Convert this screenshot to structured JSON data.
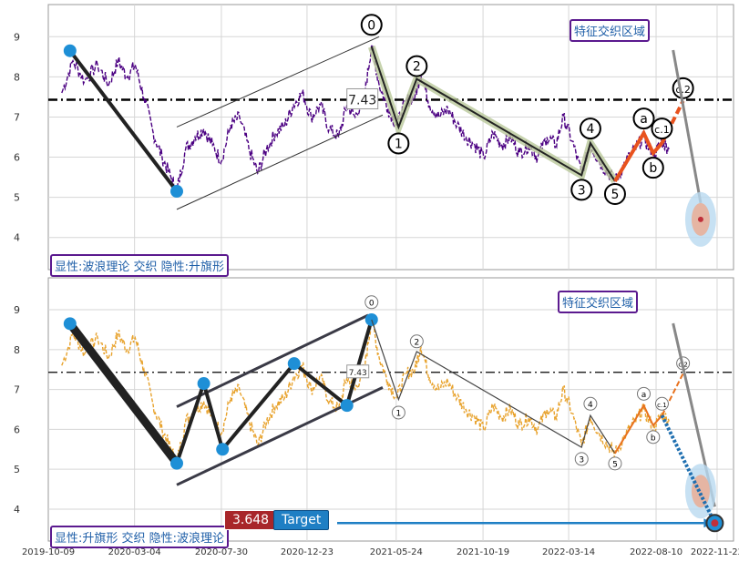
{
  "chart_data": [
    {
      "type": "line",
      "panel": "top",
      "ylim": [
        3.2,
        9.8
      ],
      "yticks": [
        4,
        5,
        6,
        7,
        8,
        9
      ],
      "grid": true,
      "reference_line": 7.43,
      "price_color": "#4b0082",
      "series": [
        {
          "values": [
            [
              "2019-11-01",
              7.6
            ],
            [
              "2019-11-20",
              8.4
            ],
            [
              "2019-12-10",
              7.9
            ],
            [
              "2020-01-01",
              8.3
            ],
            [
              "2020-01-20",
              7.8
            ],
            [
              "2020-02-05",
              8.4
            ],
            [
              "2020-02-20",
              8.0
            ],
            [
              "2020-03-05",
              8.3
            ],
            [
              "2020-03-20",
              7.5
            ],
            [
              "2020-04-05",
              6.6
            ],
            [
              "2020-04-20",
              6.0
            ],
            [
              "2020-05-05",
              5.5
            ],
            [
              "2020-05-15",
              5.15
            ],
            [
              "2020-05-30",
              6.2
            ],
            [
              "2020-06-15",
              6.5
            ],
            [
              "2020-06-30",
              6.7
            ],
            [
              "2020-07-15",
              6.3
            ],
            [
              "2020-07-30",
              5.9
            ],
            [
              "2020-08-15",
              6.8
            ],
            [
              "2020-08-30",
              7.0
            ],
            [
              "2020-09-15",
              6.2
            ],
            [
              "2020-09-30",
              5.6
            ],
            [
              "2020-10-15",
              6.2
            ],
            [
              "2020-10-30",
              6.6
            ],
            [
              "2020-11-15",
              6.8
            ],
            [
              "2020-11-30",
              7.3
            ],
            [
              "2020-12-15",
              7.6
            ],
            [
              "2020-12-30",
              7.0
            ],
            [
              "2021-01-15",
              7.3
            ],
            [
              "2021-01-30",
              6.7
            ],
            [
              "2021-02-15",
              6.5
            ],
            [
              "2021-03-01",
              7.3
            ],
            [
              "2021-03-15",
              7.0
            ],
            [
              "2021-04-01",
              7.6
            ],
            [
              "2021-04-12",
              8.8
            ],
            [
              "2021-04-25",
              7.8
            ],
            [
              "2021-05-10",
              7.2
            ],
            [
              "2021-05-25",
              6.8
            ],
            [
              "2021-06-10",
              7.4
            ],
            [
              "2021-06-25",
              7.5
            ],
            [
              "2021-07-05",
              8.1
            ],
            [
              "2021-07-20",
              7.3
            ],
            [
              "2021-08-05",
              7.0
            ],
            [
              "2021-08-20",
              7.2
            ],
            [
              "2021-09-05",
              6.8
            ],
            [
              "2021-09-20",
              6.5
            ],
            [
              "2021-10-05",
              6.3
            ],
            [
              "2021-10-20",
              6.0
            ],
            [
              "2021-11-05",
              6.6
            ],
            [
              "2021-11-20",
              6.3
            ],
            [
              "2021-12-05",
              6.5
            ],
            [
              "2021-12-20",
              6.1
            ],
            [
              "2022-01-05",
              6.3
            ],
            [
              "2022-01-20",
              6.0
            ],
            [
              "2022-02-05",
              6.5
            ],
            [
              "2022-02-20",
              6.3
            ],
            [
              "2022-03-05",
              7.0
            ],
            [
              "2022-03-20",
              6.4
            ],
            [
              "2022-04-05",
              5.6
            ],
            [
              "2022-04-20",
              6.3
            ],
            [
              "2022-05-05",
              5.9
            ],
            [
              "2022-05-20",
              5.6
            ],
            [
              "2022-06-01",
              5.4
            ],
            [
              "2022-06-20",
              5.9
            ],
            [
              "2022-07-05",
              6.2
            ],
            [
              "2022-07-20",
              6.5
            ],
            [
              "2022-08-05",
              6.0
            ],
            [
              "2022-08-20",
              6.4
            ],
            [
              "2022-09-01",
              6.2
            ]
          ]
        }
      ],
      "wave_points": [
        {
          "label": "0",
          "date": "2021-04-12",
          "y": 8.75
        },
        {
          "label": "1",
          "date": "2021-05-28",
          "y": 6.75
        },
        {
          "label": "2",
          "date": "2021-06-28",
          "y": 7.95
        },
        {
          "label": "3",
          "date": "2022-04-05",
          "y": 5.55
        },
        {
          "label": "4",
          "date": "2022-04-20",
          "y": 6.35
        },
        {
          "label": "5",
          "date": "2022-06-01",
          "y": 5.4
        },
        {
          "label": "a",
          "date": "2022-07-20",
          "y": 6.6
        },
        {
          "label": "b",
          "date": "2022-08-05",
          "y": 6.1
        },
        {
          "label": "c.1",
          "date": "2022-08-20",
          "y": 6.35
        },
        {
          "label": "c.2",
          "date": "2022-09-25",
          "y": 7.4
        }
      ],
      "swing_points": [
        {
          "date": "2019-11-15",
          "y": 8.65
        },
        {
          "date": "2020-05-15",
          "y": 5.15
        }
      ],
      "target_point": {
        "date": "2022-10-25",
        "y": 4.45
      },
      "annotations": {
        "ref_label": "7.43",
        "zone_label": "特征交织区域",
        "legend_text": "显性:波浪理论 交织 隐性:升旗形"
      }
    },
    {
      "type": "line",
      "panel": "bottom",
      "ylim": [
        3.2,
        9.8
      ],
      "yticks": [
        4,
        5,
        6,
        7,
        8,
        9
      ],
      "grid": true,
      "reference_line": 7.43,
      "price_color": "#e8a32e",
      "xticks": [
        "2019-10-09",
        "2020-03-04",
        "2020-07-30",
        "2020-12-23",
        "2021-05-24",
        "2021-10-19",
        "2022-03-14",
        "2022-08-10",
        "2022-11-22"
      ],
      "flag_points": [
        {
          "date": "2019-11-15",
          "y": 8.65
        },
        {
          "date": "2020-05-15",
          "y": 5.15
        },
        {
          "date": "2020-06-30",
          "y": 7.15
        },
        {
          "date": "2020-08-01",
          "y": 5.5
        },
        {
          "date": "2020-12-01",
          "y": 7.65
        },
        {
          "date": "2021-03-01",
          "y": 6.6
        },
        {
          "date": "2021-04-12",
          "y": 8.75
        }
      ],
      "wave_points": [
        {
          "label": "0",
          "date": "2021-04-12",
          "y": 8.75
        },
        {
          "label": "1",
          "date": "2021-05-28",
          "y": 6.75
        },
        {
          "label": "2",
          "date": "2021-06-28",
          "y": 7.95
        },
        {
          "label": "3",
          "date": "2022-04-05",
          "y": 5.55
        },
        {
          "label": "4",
          "date": "2022-04-20",
          "y": 6.35
        },
        {
          "label": "5",
          "date": "2022-06-01",
          "y": 5.4
        },
        {
          "label": "a",
          "date": "2022-07-20",
          "y": 6.6
        },
        {
          "label": "b",
          "date": "2022-08-05",
          "y": 6.1
        },
        {
          "label": "c.1",
          "date": "2022-08-20",
          "y": 6.35
        },
        {
          "label": "c.2",
          "date": "2022-09-25",
          "y": 7.4
        }
      ],
      "target_point": {
        "date": "2022-11-18",
        "y": 3.65
      },
      "annotations": {
        "ref_label": "7.43",
        "zone_label": "特征交织区域",
        "legend_text": "显性:升旗形 交织 隐性:波浪理论",
        "value_label": "3.648",
        "target_label": "Target"
      }
    }
  ]
}
